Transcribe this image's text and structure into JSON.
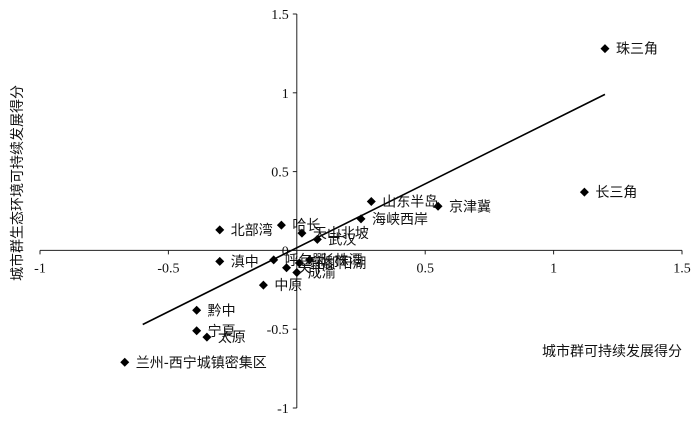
{
  "chart_data": {
    "type": "scatter",
    "xlabel": "城市群可持续发展得分",
    "ylabel": "城市群生态环境可持续发展得分",
    "xlim": [
      -1,
      1.5
    ],
    "ylim": [
      -1,
      1.5
    ],
    "xticks": [
      "-1",
      "-0.5",
      "0",
      "0.5",
      "1",
      "1.5"
    ],
    "yticks": [
      "-1",
      "-0.5",
      "0",
      "0.5",
      "1",
      "1.5"
    ],
    "axes_cross_at_origin": true,
    "grid": false,
    "marker": "diamond",
    "marker_color": "#000000",
    "trendline": {
      "type": "linear",
      "x": [
        -0.6,
        1.2
      ],
      "y": [
        -0.47,
        0.99
      ]
    },
    "points": [
      {
        "label": "珠三角",
        "x": 1.2,
        "y": 1.28
      },
      {
        "label": "长三角",
        "x": 1.12,
        "y": 0.37
      },
      {
        "label": "山东半岛",
        "x": 0.29,
        "y": 0.31
      },
      {
        "label": "京津冀",
        "x": 0.55,
        "y": 0.28
      },
      {
        "label": "海峡西岸",
        "x": 0.25,
        "y": 0.2
      },
      {
        "label": "北部湾",
        "x": -0.3,
        "y": 0.13
      },
      {
        "label": "哈长",
        "x": -0.06,
        "y": 0.16
      },
      {
        "label": "天山北坡",
        "x": 0.02,
        "y": 0.11
      },
      {
        "label": "武汉",
        "x": 0.08,
        "y": 0.07
      },
      {
        "label": "滇中",
        "x": -0.3,
        "y": -0.07
      },
      {
        "label": "呼包鄂",
        "x": -0.09,
        "y": -0.06
      },
      {
        "label": "关中",
        "x": -0.04,
        "y": -0.11
      },
      {
        "label": "长株潭",
        "x": 0.05,
        "y": -0.06
      },
      {
        "label": "环鄱阳湖",
        "x": 0.01,
        "y": -0.08
      },
      {
        "label": "成渝",
        "x": 0.0,
        "y": -0.14
      },
      {
        "label": "中原",
        "x": -0.13,
        "y": -0.22
      },
      {
        "label": "黔中",
        "x": -0.39,
        "y": -0.38
      },
      {
        "label": "宁夏",
        "x": -0.39,
        "y": -0.51
      },
      {
        "label": "太原",
        "x": -0.35,
        "y": -0.55
      },
      {
        "label": "兰州-西宁城镇密集区",
        "x": -0.67,
        "y": -0.71
      }
    ]
  }
}
